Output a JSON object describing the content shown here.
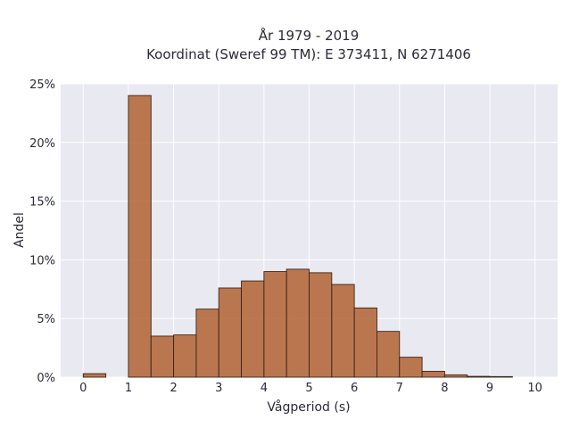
{
  "chart_data": {
    "type": "bar",
    "title": "År 1979 - 2019",
    "subtitle": "Koordinat (Sweref 99 TM): E 373411, N 6271406",
    "xlabel": "Vågperiod (s)",
    "ylabel": "Andel",
    "xlim": [
      -0.5,
      10.5
    ],
    "ylim": [
      0,
      25
    ],
    "xticks": [
      0,
      1,
      2,
      3,
      4,
      5,
      6,
      7,
      8,
      9,
      10
    ],
    "xtick_labels": [
      "0",
      "1",
      "2",
      "3",
      "4",
      "5",
      "6",
      "7",
      "8",
      "9",
      "10"
    ],
    "yticks": [
      0,
      5,
      10,
      15,
      20,
      25
    ],
    "ytick_labels": [
      "0%",
      "5%",
      "10%",
      "15%",
      "20%",
      "25%"
    ],
    "bin_width": 0.5,
    "bin_starts": [
      0,
      0.5,
      1,
      1.5,
      2,
      2.5,
      3,
      3.5,
      4,
      4.5,
      5,
      5.5,
      6,
      6.5,
      7,
      7.5,
      8,
      8.5,
      9,
      9.5
    ],
    "values": [
      0.3,
      0,
      24.0,
      3.5,
      3.6,
      5.8,
      7.6,
      8.2,
      9.0,
      9.2,
      8.9,
      7.9,
      5.9,
      3.9,
      1.7,
      0.5,
      0.2,
      0.07,
      0.05,
      0
    ],
    "grid": true,
    "colors": {
      "bar": "#b56a3d",
      "plot_background": "#e9e9f1",
      "grid": "#ffffff",
      "bar_edge": "#3b2418"
    }
  }
}
